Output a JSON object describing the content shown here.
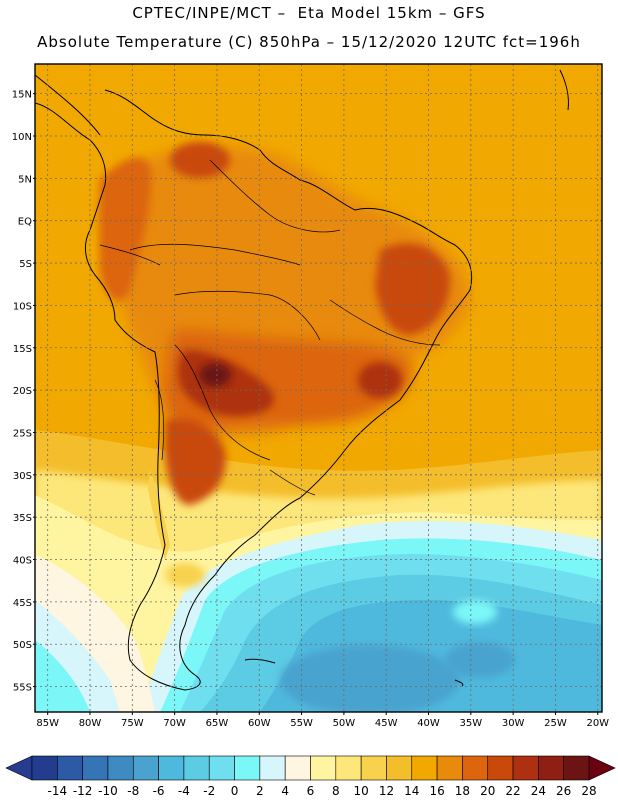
{
  "header": {
    "line1": "CPTEC/INPE/MCT –  Eta Model 15km – GFS",
    "line2": "Absolute Temperature (C) 850hPa – 15/12/2020 12UTC fct=196h"
  },
  "map": {
    "lat_labels": [
      "15N",
      "10N",
      "5N",
      "EQ",
      "5S",
      "10S",
      "15S",
      "20S",
      "25S",
      "30S",
      "35S",
      "40S",
      "45S",
      "50S",
      "55S"
    ],
    "lat_values": [
      15,
      10,
      5,
      0,
      -5,
      -10,
      -15,
      -20,
      -25,
      -30,
      -35,
      -40,
      -45,
      -50,
      -55
    ],
    "lon_labels": [
      "85W",
      "80W",
      "75W",
      "70W",
      "65W",
      "60W",
      "55W",
      "50W",
      "45W",
      "40W",
      "35W",
      "30W",
      "25W",
      "20W"
    ],
    "lon_values": [
      -85,
      -80,
      -75,
      -70,
      -65,
      -60,
      -55,
      -50,
      -45,
      -40,
      -35,
      -30,
      -25,
      -20
    ]
  },
  "colorbar": {
    "labels": [
      "-14",
      "-12",
      "-10",
      "-8",
      "-6",
      "-4",
      "-2",
      "0",
      "2",
      "4",
      "6",
      "8",
      "10",
      "12",
      "14",
      "16",
      "18",
      "20",
      "22",
      "24",
      "26",
      "28"
    ],
    "colors": [
      "#243c8e",
      "#2d5aa6",
      "#3575b6",
      "#3d8bc2",
      "#4aa3cf",
      "#4fb9dd",
      "#5ccbe4",
      "#6fdff0",
      "#7cf7f7",
      "#d6f6fb",
      "#fff6e2",
      "#fff4a0",
      "#fde77a",
      "#f8d14d",
      "#f4bd2b",
      "#f1a800",
      "#e88a0b",
      "#dc650d",
      "#c9490c",
      "#ad3110",
      "#8f1f12",
      "#6a1414"
    ],
    "under_color": "#263d8f",
    "over_color": "#6a0010"
  }
}
